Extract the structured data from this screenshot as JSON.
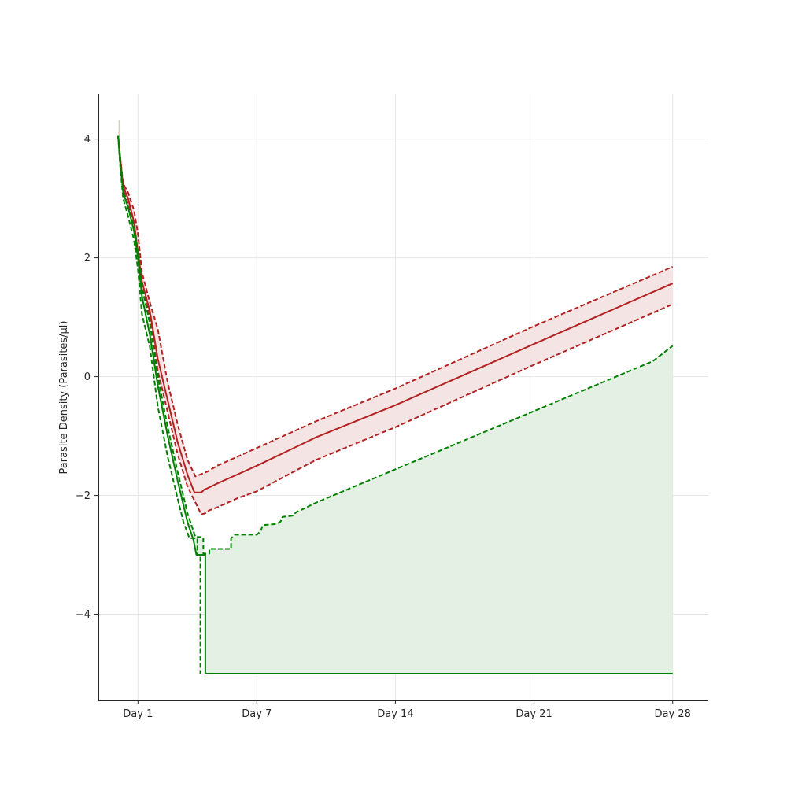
{
  "chart_data": {
    "type": "line",
    "title": "",
    "xlabel": "",
    "ylabel": "Parasite Density (Parasites/µl)",
    "xlim": [
      -1.0,
      29.8
    ],
    "ylim": [
      -5.45,
      4.75
    ],
    "x_ticks": [
      {
        "value": 1,
        "label": "Day 1"
      },
      {
        "value": 7,
        "label": "Day 7"
      },
      {
        "value": 14,
        "label": "Day 14"
      },
      {
        "value": 21,
        "label": "Day 21"
      },
      {
        "value": 28,
        "label": "Day 28"
      }
    ],
    "y_ticks": [
      {
        "value": 4,
        "label": "4"
      },
      {
        "value": 2,
        "label": "2"
      },
      {
        "value": 0,
        "label": "0"
      },
      {
        "value": -2,
        "label": "−2"
      },
      {
        "value": -4,
        "label": "−4"
      }
    ],
    "grid": true,
    "legend": "none",
    "colors": {
      "red": "#b22222",
      "green": "#008000",
      "red_fill": "#f5e4e4",
      "green_fill": "#e4f0e4",
      "grid": "#e6e6e6",
      "spike": "#d6cfc0"
    },
    "series": [
      {
        "role": "red-median",
        "color": "#b22222",
        "dash": "solid",
        "x": [
          0,
          0.1,
          0.25,
          0.5,
          0.8,
          1.0,
          1.2,
          1.6,
          2.0,
          2.5,
          3.0,
          3.5,
          3.85,
          4.2,
          4.35,
          4.5,
          5,
          6,
          7,
          10,
          14,
          21,
          28
        ],
        "y": [
          4.05,
          3.7,
          3.2,
          3.0,
          2.6,
          2.1,
          1.6,
          1.1,
          0.3,
          -0.4,
          -1.1,
          -1.65,
          -1.95,
          -1.95,
          -1.9,
          -1.88,
          -1.8,
          -1.65,
          -1.5,
          -1.02,
          -0.48,
          0.55,
          1.57
        ]
      },
      {
        "role": "red-upper",
        "color": "#b22222",
        "dash": "dashed",
        "x": [
          0,
          0.1,
          0.25,
          0.5,
          0.8,
          1.0,
          1.2,
          1.6,
          2.0,
          2.5,
          3.0,
          3.5,
          3.9,
          4.5,
          5,
          6,
          7,
          10,
          14,
          21,
          28
        ],
        "y": [
          4.05,
          3.7,
          3.25,
          3.1,
          2.8,
          2.4,
          1.75,
          1.25,
          0.8,
          -0.1,
          -0.8,
          -1.4,
          -1.68,
          -1.6,
          -1.5,
          -1.35,
          -1.2,
          -0.75,
          -0.2,
          0.85,
          1.85
        ]
      },
      {
        "role": "red-lower",
        "color": "#b22222",
        "dash": "dashed",
        "x": [
          0,
          0.1,
          0.25,
          0.5,
          0.8,
          1.0,
          1.2,
          1.6,
          2.0,
          2.5,
          3.0,
          3.5,
          4.2,
          4.4,
          4.6,
          5,
          6,
          7,
          10,
          14,
          21,
          28
        ],
        "y": [
          4.05,
          3.65,
          3.15,
          2.9,
          2.5,
          2.1,
          1.55,
          1.0,
          0.1,
          -0.6,
          -1.3,
          -1.85,
          -2.32,
          -2.3,
          -2.25,
          -2.2,
          -2.05,
          -1.93,
          -1.4,
          -0.85,
          0.2,
          1.22
        ]
      },
      {
        "role": "green-median",
        "color": "#008000",
        "dash": "solid",
        "x": [
          0,
          0.1,
          0.25,
          0.5,
          0.8,
          1.0,
          1.2,
          1.6,
          2.0,
          2.5,
          3.0,
          3.5,
          3.8,
          3.95,
          4.4,
          4.4,
          4.6,
          28
        ],
        "y": [
          4.05,
          3.6,
          3.1,
          2.85,
          2.45,
          2.0,
          1.35,
          0.7,
          -0.15,
          -1.0,
          -1.75,
          -2.45,
          -2.75,
          -3.0,
          -3.0,
          -5.0,
          -5.0,
          -5.0
        ]
      },
      {
        "role": "green-upper",
        "color": "#008000",
        "dash": "dashed",
        "x": [
          0,
          0.1,
          0.25,
          0.5,
          0.8,
          1.0,
          1.2,
          1.6,
          2.0,
          2.5,
          3.0,
          3.5,
          3.75,
          3.9,
          4.3,
          4.3,
          4.6,
          4.6,
          5.7,
          5.7,
          5.9,
          6.0,
          7.0,
          7.2,
          7.3,
          8.0,
          8.2,
          8.3,
          8.8,
          9.0,
          9.2,
          10,
          11,
          12,
          13,
          14,
          15,
          16,
          17,
          18,
          19,
          20,
          21,
          22,
          23,
          24,
          25,
          26,
          27,
          28
        ],
        "y": [
          4.05,
          3.6,
          3.1,
          2.85,
          2.5,
          2.1,
          1.5,
          0.9,
          0.0,
          -0.85,
          -1.6,
          -2.3,
          -2.55,
          -2.7,
          -2.7,
          -2.98,
          -2.98,
          -2.9,
          -2.9,
          -2.72,
          -2.66,
          -2.66,
          -2.66,
          -2.6,
          -2.5,
          -2.48,
          -2.44,
          -2.36,
          -2.34,
          -2.28,
          -2.25,
          -2.12,
          -1.98,
          -1.84,
          -1.7,
          -1.56,
          -1.42,
          -1.28,
          -1.14,
          -1.0,
          -0.86,
          -0.72,
          -0.58,
          -0.44,
          -0.3,
          -0.16,
          -0.02,
          0.12,
          0.26,
          0.52
        ]
      },
      {
        "role": "green-lower",
        "color": "#008000",
        "dash": "dashed",
        "x": [
          0,
          0.1,
          0.25,
          0.5,
          0.8,
          1.0,
          1.2,
          1.6,
          2.0,
          2.5,
          3.0,
          3.3,
          3.6,
          3.6,
          4.0,
          4.0,
          4.15,
          4.15
        ],
        "y": [
          4.05,
          3.55,
          3.0,
          2.7,
          2.3,
          1.8,
          1.05,
          0.5,
          -0.5,
          -1.35,
          -2.05,
          -2.45,
          -2.72,
          -2.72,
          -2.72,
          -3.0,
          -3.0,
          -5.0
        ]
      }
    ],
    "bands": [
      {
        "role": "red-interval",
        "color": "#f5e4e4",
        "between": [
          "red-lower",
          "red-upper"
        ]
      },
      {
        "role": "green-interval",
        "color": "#e4f0e4",
        "between": [
          "green-median",
          "green-upper"
        ]
      }
    ],
    "marks": [
      {
        "role": "initial-spike",
        "color": "#d6cfc0",
        "x": 0.05,
        "y_from": 4.05,
        "y_to": 4.32
      }
    ]
  }
}
